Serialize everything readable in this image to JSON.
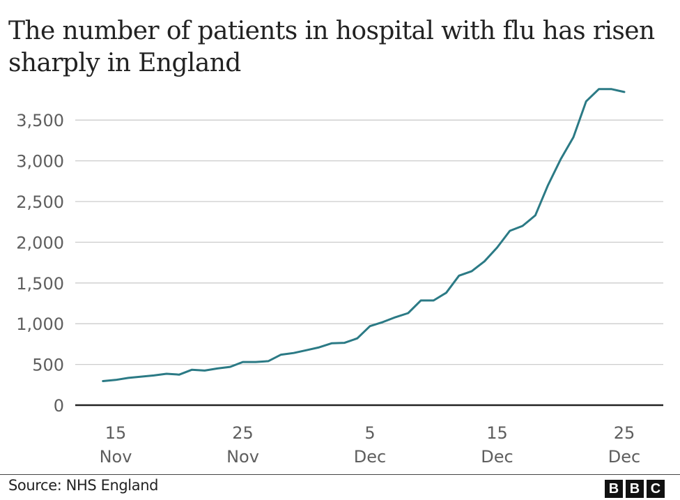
{
  "title": "The number of patients in hospital with flu has risen sharply in England",
  "source": "Source: NHS England",
  "logo": {
    "letters": [
      "B",
      "B",
      "C"
    ],
    "name": "BBC"
  },
  "colors": {
    "line": "#2b7a85",
    "grid": "#cccccc",
    "axis": "#222222",
    "text": "#5e5e5e"
  },
  "chart_data": {
    "type": "line",
    "title": "The number of patients in hospital with flu has risen sharply in England",
    "xlabel": "",
    "ylabel": "",
    "ylim": [
      0,
      3900
    ],
    "yticks": [
      0,
      500,
      1000,
      1500,
      2000,
      2500,
      3000,
      3500
    ],
    "ytick_labels": [
      "0",
      "500",
      "1,000",
      "1,500",
      "2,000",
      "2,500",
      "3,000",
      "3,500"
    ],
    "xticks": [
      {
        "day": 1,
        "line1": "15",
        "line2": "Nov"
      },
      {
        "day": 11,
        "line1": "25",
        "line2": "Nov"
      },
      {
        "day": 21,
        "line1": "5",
        "line2": "Dec"
      },
      {
        "day": 31,
        "line1": "15",
        "line2": "Dec"
      },
      {
        "day": 41,
        "line1": "25",
        "line2": "Dec"
      }
    ],
    "grid": true,
    "legend": "none",
    "series": [
      {
        "name": "Patients in hospital with flu",
        "x": [
          "14 Nov",
          "15 Nov",
          "16 Nov",
          "17 Nov",
          "18 Nov",
          "19 Nov",
          "20 Nov",
          "21 Nov",
          "22 Nov",
          "23 Nov",
          "24 Nov",
          "25 Nov",
          "26 Nov",
          "27 Nov",
          "28 Nov",
          "29 Nov",
          "30 Nov",
          "1 Dec",
          "2 Dec",
          "3 Dec",
          "4 Dec",
          "5 Dec",
          "6 Dec",
          "7 Dec",
          "8 Dec",
          "9 Dec",
          "10 Dec",
          "11 Dec",
          "12 Dec",
          "13 Dec",
          "14 Dec",
          "15 Dec",
          "16 Dec",
          "17 Dec",
          "18 Dec",
          "19 Dec",
          "20 Dec",
          "21 Dec",
          "22 Dec",
          "23 Dec",
          "24 Dec",
          "25 Dec"
        ],
        "values": [
          295,
          310,
          335,
          350,
          365,
          385,
          375,
          435,
          425,
          450,
          470,
          530,
          530,
          540,
          620,
          640,
          675,
          710,
          760,
          765,
          820,
          970,
          1020,
          1080,
          1130,
          1285,
          1285,
          1380,
          1590,
          1645,
          1765,
          1935,
          2140,
          2200,
          2330,
          2700,
          3020,
          3290,
          3730,
          3880,
          3880,
          3845
        ]
      }
    ]
  }
}
